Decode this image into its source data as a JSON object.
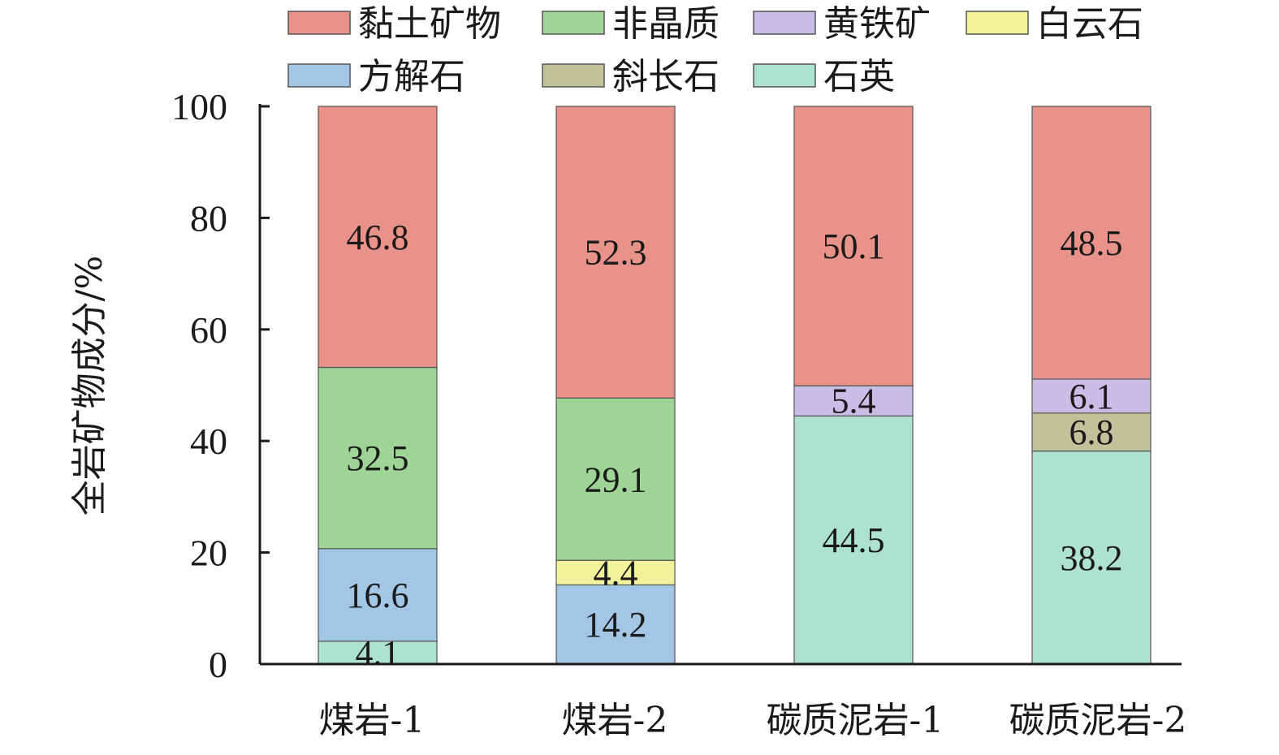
{
  "colors": {
    "黏土矿物": "#e8928a",
    "非晶质": "#9ed495",
    "黄铁矿": "#c9bce6",
    "白云石": "#f2f29a",
    "方解石": "#a3c6e6",
    "斜长石": "#c1c19a",
    "石英": "#ade2d1"
  },
  "legend_order": [
    "黏土矿物",
    "非晶质",
    "黄铁矿",
    "白云石",
    "方解石",
    "斜长石",
    "石英"
  ],
  "chart_data": {
    "type": "bar",
    "stacked": true,
    "ylabel": "全岩矿物成分/%",
    "xlabel": "",
    "ylim": [
      0,
      100
    ],
    "yticks": [
      0,
      20,
      40,
      60,
      80,
      100
    ],
    "categories": [
      "煤岩-1",
      "煤岩-2",
      "碳质泥岩-1",
      "碳质泥岩-2"
    ],
    "stack_order": [
      "石英",
      "方解石",
      "斜长石",
      "白云石",
      "黄铁矿",
      "非晶质",
      "黏土矿物"
    ],
    "series": [
      {
        "name": "黏土矿物",
        "values": [
          46.8,
          52.3,
          50.1,
          48.5
        ]
      },
      {
        "name": "非晶质",
        "values": [
          32.5,
          29.1,
          0,
          0
        ]
      },
      {
        "name": "黄铁矿",
        "values": [
          0,
          0,
          5.4,
          6.1
        ]
      },
      {
        "name": "白云石",
        "values": [
          0,
          4.4,
          0,
          0
        ]
      },
      {
        "name": "方解石",
        "values": [
          16.6,
          14.2,
          0,
          0
        ]
      },
      {
        "name": "斜长石",
        "values": [
          0,
          0,
          0,
          6.8
        ]
      },
      {
        "name": "石英",
        "values": [
          4.1,
          0,
          44.5,
          38.2
        ]
      }
    ],
    "legend_position": "top",
    "grid": false
  }
}
